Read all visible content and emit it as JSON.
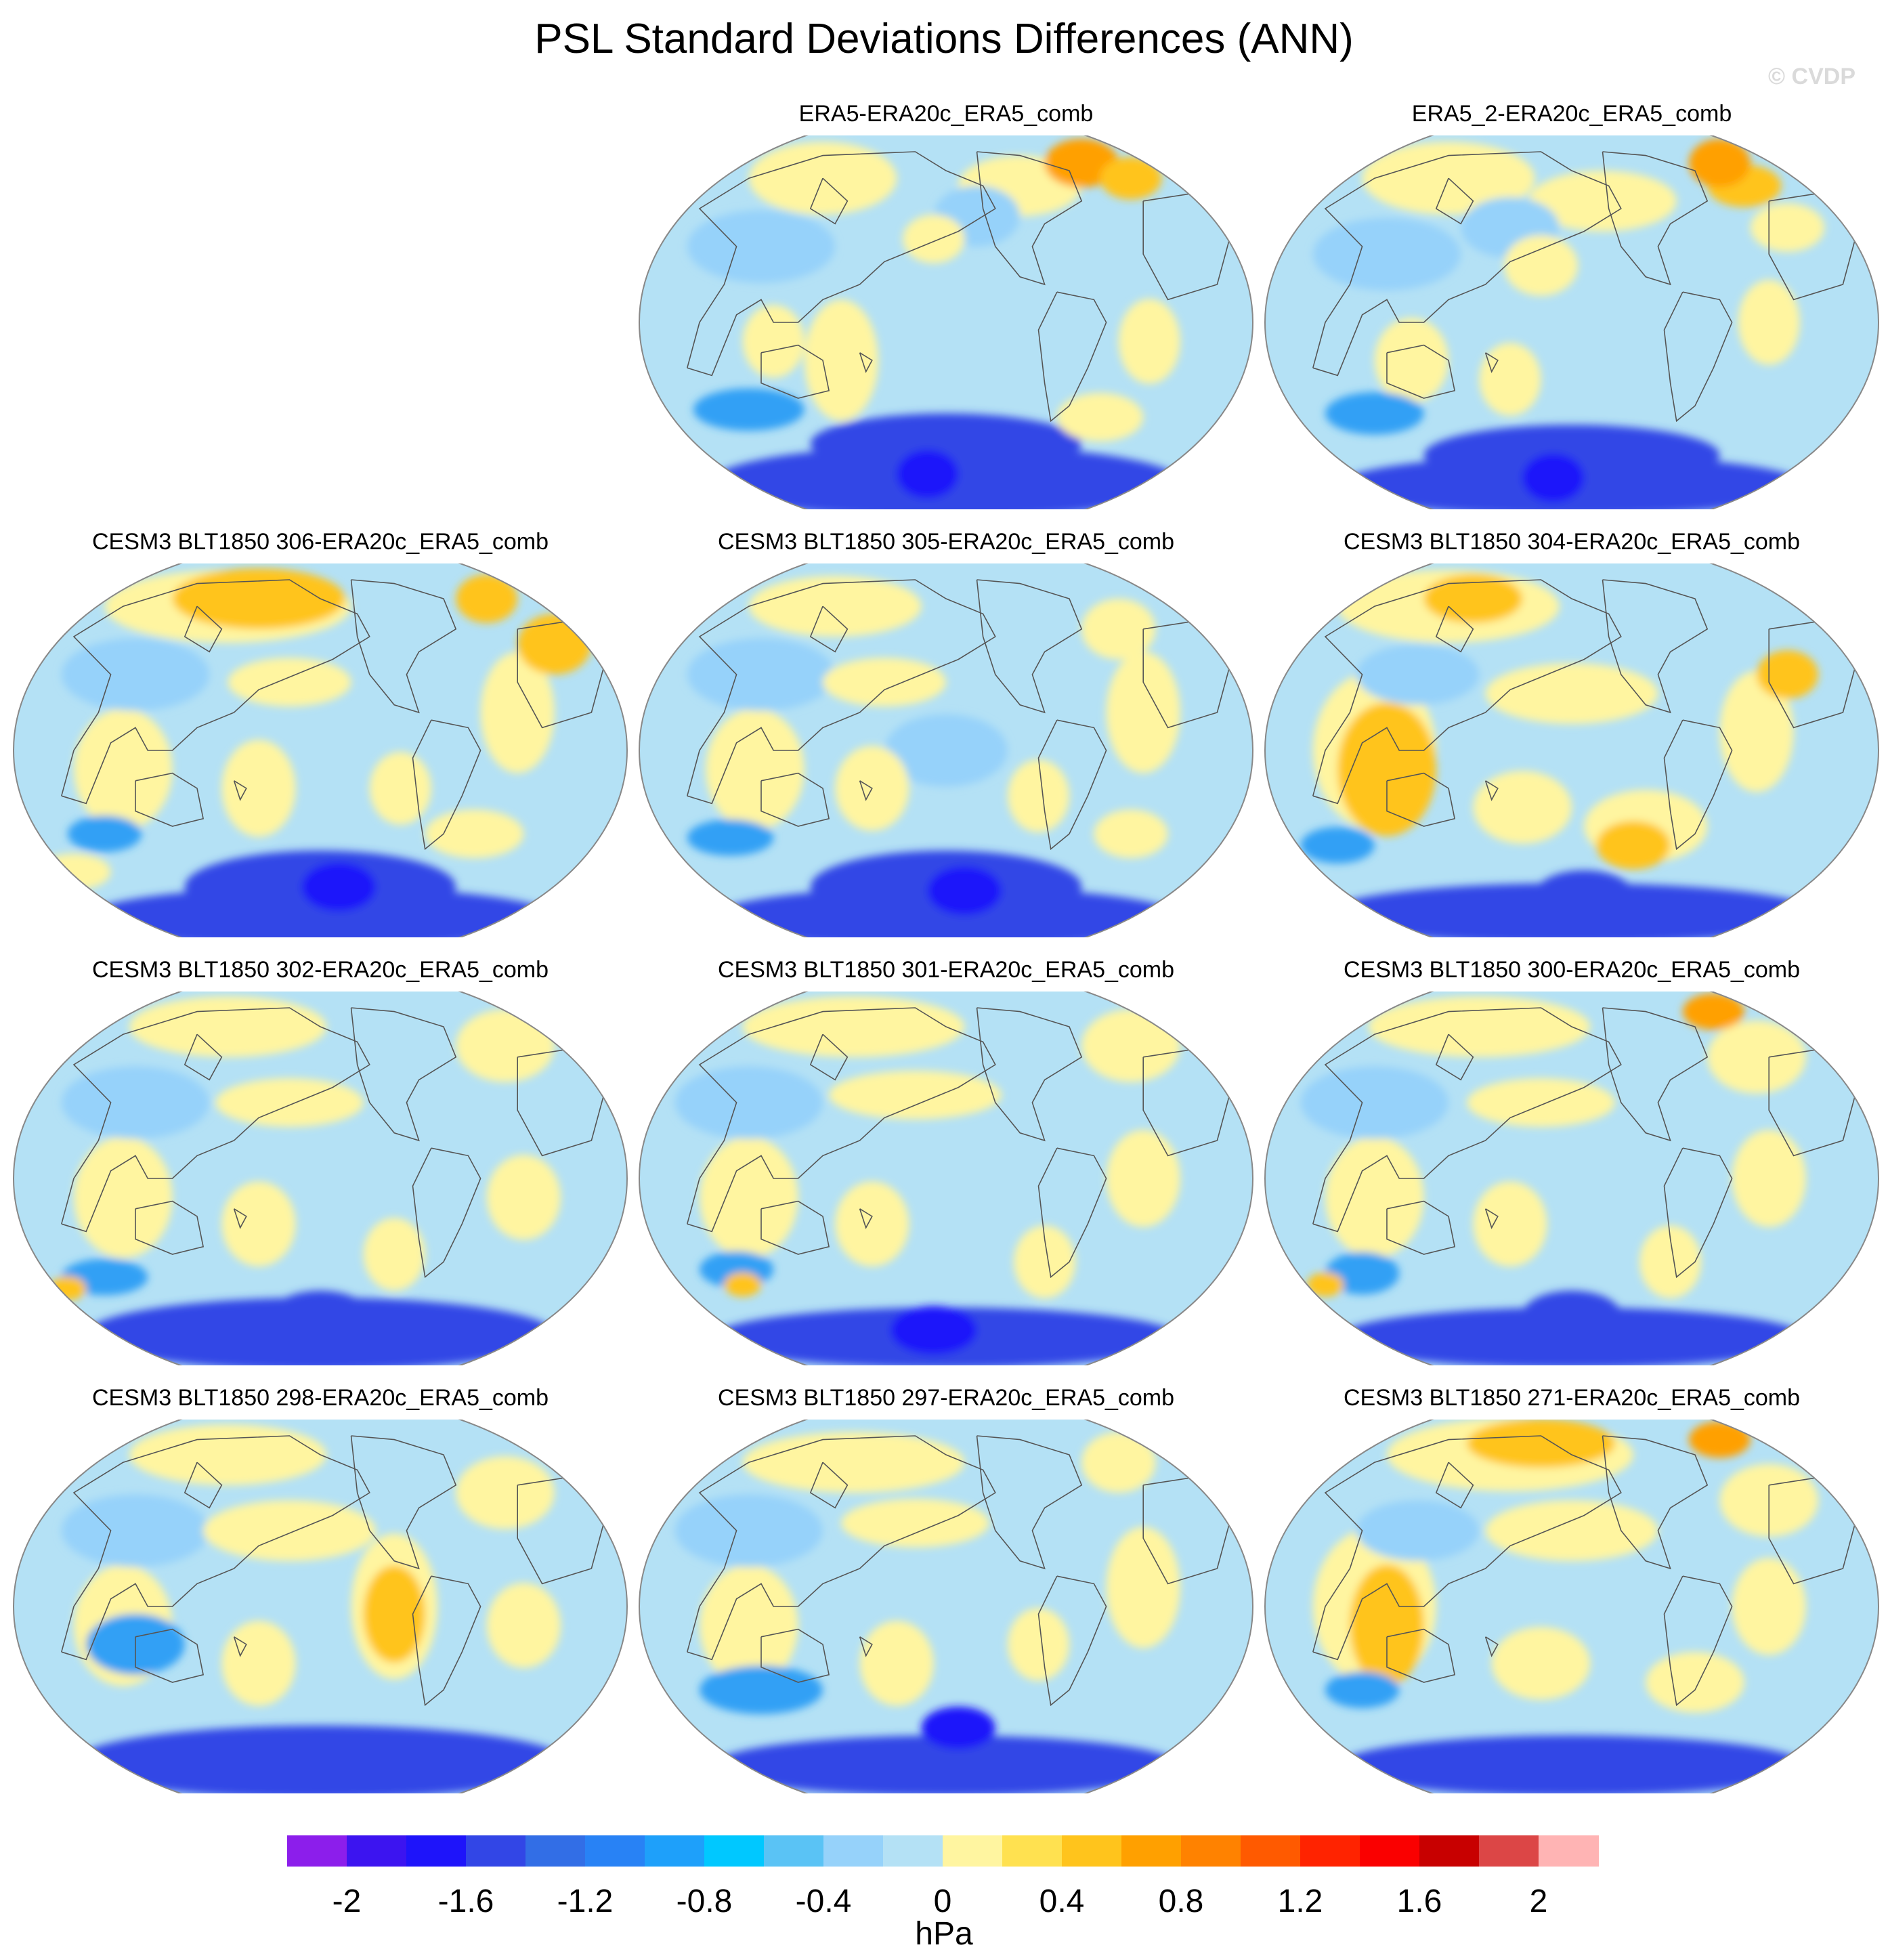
{
  "title": "PSL Standard Deviations Differences (ANN)",
  "watermark": "© CVDP",
  "panels": [
    {
      "label": "ERA5-ERA20c_ERA5_comb",
      "col": 1,
      "row": 0,
      "blobs": [
        [
          0.72,
          0.08,
          0.06,
          0.04,
          "#ffa000"
        ],
        [
          0.8,
          0.12,
          0.05,
          0.035,
          "#ffc41c"
        ],
        [
          0.5,
          0.82,
          0.22,
          0.05,
          "#3246e6"
        ],
        [
          0.5,
          0.92,
          0.38,
          0.06,
          "#3246e6"
        ],
        [
          0.47,
          0.9,
          0.05,
          0.04,
          "#1e14fa"
        ],
        [
          0.18,
          0.73,
          0.09,
          0.035,
          "#32a0f5"
        ],
        [
          0.62,
          0.14,
          0.1,
          0.05,
          "#fff5a0"
        ],
        [
          0.3,
          0.12,
          0.12,
          0.06,
          "#fff5a0"
        ],
        [
          0.22,
          0.55,
          0.05,
          0.06,
          "#fff5a0"
        ],
        [
          0.33,
          0.6,
          0.06,
          0.1,
          "#fff5a0"
        ],
        [
          0.83,
          0.55,
          0.05,
          0.07,
          "#fff5a0"
        ],
        [
          0.48,
          0.28,
          0.05,
          0.04,
          "#fff5a0"
        ],
        [
          0.75,
          0.75,
          0.07,
          0.04,
          "#fff5a0"
        ],
        [
          0.2,
          0.3,
          0.12,
          0.06,
          "#96d2fa"
        ],
        [
          0.55,
          0.22,
          0.07,
          0.05,
          "#96d2fa"
        ]
      ]
    },
    {
      "label": "ERA5_2-ERA20c_ERA5_comb",
      "col": 2,
      "row": 0,
      "blobs": [
        [
          0.74,
          0.08,
          0.05,
          0.04,
          "#ffa000"
        ],
        [
          0.78,
          0.14,
          0.06,
          0.035,
          "#ffc41c"
        ],
        [
          0.5,
          0.85,
          0.24,
          0.05,
          "#3246e6"
        ],
        [
          0.5,
          0.93,
          0.38,
          0.05,
          "#3246e6"
        ],
        [
          0.47,
          0.91,
          0.05,
          0.04,
          "#1e14fa"
        ],
        [
          0.18,
          0.74,
          0.08,
          0.035,
          "#32a0f5"
        ],
        [
          0.55,
          0.18,
          0.12,
          0.05,
          "#fff5a0"
        ],
        [
          0.3,
          0.12,
          0.14,
          0.06,
          "#fff5a0"
        ],
        [
          0.24,
          0.6,
          0.06,
          0.07,
          "#fff5a0"
        ],
        [
          0.4,
          0.65,
          0.05,
          0.06,
          "#fff5a0"
        ],
        [
          0.82,
          0.5,
          0.05,
          0.07,
          "#fff5a0"
        ],
        [
          0.45,
          0.35,
          0.06,
          0.05,
          "#fff5a0"
        ],
        [
          0.85,
          0.25,
          0.06,
          0.04,
          "#fff5a0"
        ],
        [
          0.2,
          0.32,
          0.12,
          0.06,
          "#96d2fa"
        ],
        [
          0.4,
          0.25,
          0.08,
          0.05,
          "#96d2fa"
        ]
      ]
    },
    {
      "label": "CESM3 BLT1850 306-ERA20c_ERA5_comb",
      "col": 0,
      "row": 1,
      "blobs": [
        [
          0.5,
          0.86,
          0.22,
          0.06,
          "#3246e6"
        ],
        [
          0.5,
          0.94,
          0.38,
          0.05,
          "#3246e6"
        ],
        [
          0.53,
          0.86,
          0.06,
          0.04,
          "#1e14fa"
        ],
        [
          0.4,
          0.1,
          0.14,
          0.05,
          "#ffc41c"
        ],
        [
          0.77,
          0.1,
          0.05,
          0.04,
          "#ffc41c"
        ],
        [
          0.88,
          0.22,
          0.06,
          0.05,
          "#ffc41c"
        ],
        [
          0.15,
          0.72,
          0.06,
          0.03,
          "#32a0f5"
        ],
        [
          0.35,
          0.12,
          0.2,
          0.06,
          "#fff5a0"
        ],
        [
          0.45,
          0.32,
          0.1,
          0.04,
          "#fff5a0"
        ],
        [
          0.18,
          0.55,
          0.08,
          0.1,
          "#fff5a0"
        ],
        [
          0.4,
          0.6,
          0.06,
          0.08,
          "#fff5a0"
        ],
        [
          0.63,
          0.6,
          0.05,
          0.06,
          "#fff5a0"
        ],
        [
          0.82,
          0.4,
          0.06,
          0.1,
          "#fff5a0"
        ],
        [
          0.75,
          0.72,
          0.08,
          0.04,
          "#fff5a0"
        ],
        [
          0.1,
          0.82,
          0.06,
          0.03,
          "#fff5a0"
        ],
        [
          0.2,
          0.3,
          0.12,
          0.06,
          "#96d2fa"
        ]
      ]
    },
    {
      "label": "CESM3 BLT1850 305-ERA20c_ERA5_comb",
      "col": 1,
      "row": 1,
      "blobs": [
        [
          0.5,
          0.86,
          0.22,
          0.06,
          "#3246e6"
        ],
        [
          0.5,
          0.94,
          0.38,
          0.05,
          "#3246e6"
        ],
        [
          0.53,
          0.87,
          0.06,
          0.04,
          "#1e14fa"
        ],
        [
          0.15,
          0.73,
          0.07,
          0.03,
          "#32a0f5"
        ],
        [
          0.32,
          0.12,
          0.14,
          0.05,
          "#fff5a0"
        ],
        [
          0.78,
          0.18,
          0.06,
          0.05,
          "#fff5a0"
        ],
        [
          0.4,
          0.32,
          0.1,
          0.04,
          "#fff5a0"
        ],
        [
          0.19,
          0.55,
          0.08,
          0.1,
          "#fff5a0"
        ],
        [
          0.38,
          0.6,
          0.06,
          0.07,
          "#fff5a0"
        ],
        [
          0.65,
          0.62,
          0.05,
          0.06,
          "#fff5a0"
        ],
        [
          0.82,
          0.4,
          0.06,
          0.1,
          "#fff5a0"
        ],
        [
          0.8,
          0.72,
          0.06,
          0.04,
          "#fff5a0"
        ],
        [
          0.2,
          0.3,
          0.12,
          0.06,
          "#96d2fa"
        ],
        [
          0.5,
          0.5,
          0.1,
          0.06,
          "#96d2fa"
        ]
      ]
    },
    {
      "label": "CESM3 BLT1850 304-ERA20c_ERA5_comb",
      "col": 2,
      "row": 1,
      "blobs": [
        [
          0.5,
          0.93,
          0.4,
          0.05,
          "#3246e6"
        ],
        [
          0.52,
          0.88,
          0.08,
          0.04,
          "#3246e6"
        ],
        [
          0.2,
          0.55,
          0.08,
          0.11,
          "#ffc41c"
        ],
        [
          0.34,
          0.1,
          0.08,
          0.04,
          "#ffc41c"
        ],
        [
          0.6,
          0.75,
          0.06,
          0.04,
          "#ffc41c"
        ],
        [
          0.85,
          0.3,
          0.05,
          0.04,
          "#ffc41c"
        ],
        [
          0.3,
          0.12,
          0.18,
          0.06,
          "#fff5a0"
        ],
        [
          0.5,
          0.35,
          0.14,
          0.05,
          "#fff5a0"
        ],
        [
          0.18,
          0.5,
          0.1,
          0.13,
          "#fff5a0"
        ],
        [
          0.42,
          0.65,
          0.08,
          0.06,
          "#fff5a0"
        ],
        [
          0.8,
          0.45,
          0.06,
          0.1,
          "#fff5a0"
        ],
        [
          0.62,
          0.7,
          0.1,
          0.06,
          "#fff5a0"
        ],
        [
          0.12,
          0.75,
          0.06,
          0.03,
          "#32a0f5"
        ],
        [
          0.25,
          0.3,
          0.1,
          0.05,
          "#96d2fa"
        ]
      ]
    },
    {
      "label": "CESM3 BLT1850 302-ERA20c_ERA5_comb",
      "col": 0,
      "row": 2,
      "blobs": [
        [
          0.5,
          0.91,
          0.38,
          0.06,
          "#3246e6"
        ],
        [
          0.5,
          0.86,
          0.08,
          0.04,
          "#3246e6"
        ],
        [
          0.15,
          0.76,
          0.07,
          0.03,
          "#32a0f5"
        ],
        [
          0.35,
          0.1,
          0.16,
          0.05,
          "#fff5a0"
        ],
        [
          0.8,
          0.15,
          0.08,
          0.06,
          "#fff5a0"
        ],
        [
          0.45,
          0.3,
          0.12,
          0.04,
          "#fff5a0"
        ],
        [
          0.18,
          0.55,
          0.08,
          0.1,
          "#fff5a0"
        ],
        [
          0.4,
          0.62,
          0.06,
          0.07,
          "#fff5a0"
        ],
        [
          0.62,
          0.7,
          0.05,
          0.06,
          "#fff5a0"
        ],
        [
          0.83,
          0.55,
          0.06,
          0.07,
          "#fff5a0"
        ],
        [
          0.2,
          0.3,
          0.12,
          0.06,
          "#96d2fa"
        ],
        [
          0.09,
          0.79,
          0.03,
          0.02,
          "#ffc41c"
        ]
      ]
    },
    {
      "label": "CESM3 BLT1850 301-ERA20c_ERA5_comb",
      "col": 1,
      "row": 2,
      "blobs": [
        [
          0.5,
          0.92,
          0.38,
          0.05,
          "#3246e6"
        ],
        [
          0.48,
          0.9,
          0.07,
          0.04,
          "#1e14fa"
        ],
        [
          0.16,
          0.74,
          0.06,
          0.03,
          "#32a0f5"
        ],
        [
          0.35,
          0.1,
          0.18,
          0.05,
          "#fff5a0"
        ],
        [
          0.8,
          0.15,
          0.08,
          0.06,
          "#fff5a0"
        ],
        [
          0.45,
          0.28,
          0.14,
          0.04,
          "#fff5a0"
        ],
        [
          0.18,
          0.55,
          0.08,
          0.1,
          "#fff5a0"
        ],
        [
          0.38,
          0.62,
          0.06,
          0.07,
          "#fff5a0"
        ],
        [
          0.66,
          0.72,
          0.05,
          0.06,
          "#fff5a0"
        ],
        [
          0.82,
          0.5,
          0.06,
          0.08,
          "#fff5a0"
        ],
        [
          0.18,
          0.3,
          0.12,
          0.06,
          "#96d2fa"
        ],
        [
          0.17,
          0.78,
          0.03,
          0.02,
          "#ffc41c"
        ]
      ]
    },
    {
      "label": "CESM3 BLT1850 300-ERA20c_ERA5_comb",
      "col": 2,
      "row": 2,
      "blobs": [
        [
          0.5,
          0.92,
          0.38,
          0.05,
          "#3246e6"
        ],
        [
          0.5,
          0.86,
          0.08,
          0.04,
          "#3246e6"
        ],
        [
          0.73,
          0.06,
          0.05,
          0.03,
          "#ffa000"
        ],
        [
          0.16,
          0.75,
          0.06,
          0.035,
          "#32a0f5"
        ],
        [
          0.35,
          0.1,
          0.18,
          0.05,
          "#fff5a0"
        ],
        [
          0.8,
          0.18,
          0.08,
          0.06,
          "#fff5a0"
        ],
        [
          0.45,
          0.3,
          0.12,
          0.04,
          "#fff5a0"
        ],
        [
          0.18,
          0.55,
          0.08,
          0.1,
          "#fff5a0"
        ],
        [
          0.4,
          0.62,
          0.06,
          0.07,
          "#fff5a0"
        ],
        [
          0.66,
          0.72,
          0.05,
          0.06,
          "#fff5a0"
        ],
        [
          0.82,
          0.5,
          0.06,
          0.08,
          "#fff5a0"
        ],
        [
          0.18,
          0.3,
          0.12,
          0.06,
          "#96d2fa"
        ],
        [
          0.1,
          0.78,
          0.03,
          0.02,
          "#ffc41c"
        ]
      ]
    },
    {
      "label": "CESM3 BLT1850 298-ERA20c_ERA5_comb",
      "col": 0,
      "row": 3,
      "blobs": [
        [
          0.5,
          0.91,
          0.4,
          0.06,
          "#3246e6"
        ],
        [
          0.62,
          0.52,
          0.05,
          0.08,
          "#ffc41c"
        ],
        [
          0.2,
          0.6,
          0.08,
          0.05,
          "#32a0f5"
        ],
        [
          0.35,
          0.1,
          0.16,
          0.05,
          "#fff5a0"
        ],
        [
          0.8,
          0.2,
          0.08,
          0.06,
          "#fff5a0"
        ],
        [
          0.45,
          0.3,
          0.14,
          0.05,
          "#fff5a0"
        ],
        [
          0.18,
          0.55,
          0.08,
          0.1,
          "#fff5a0"
        ],
        [
          0.62,
          0.5,
          0.07,
          0.12,
          "#fff5a0"
        ],
        [
          0.4,
          0.65,
          0.06,
          0.07,
          "#fff5a0"
        ],
        [
          0.83,
          0.55,
          0.06,
          0.07,
          "#fff5a0"
        ],
        [
          0.2,
          0.3,
          0.12,
          0.06,
          "#96d2fa"
        ]
      ]
    },
    {
      "label": "CESM3 BLT1850 297-ERA20c_ERA5_comb",
      "col": 1,
      "row": 3,
      "blobs": [
        [
          0.5,
          0.92,
          0.38,
          0.05,
          "#3246e6"
        ],
        [
          0.52,
          0.82,
          0.06,
          0.035,
          "#1e14fa"
        ],
        [
          0.2,
          0.72,
          0.1,
          0.04,
          "#32a0f5"
        ],
        [
          0.35,
          0.12,
          0.18,
          0.05,
          "#fff5a0"
        ],
        [
          0.78,
          0.12,
          0.06,
          0.05,
          "#fff5a0"
        ],
        [
          0.45,
          0.28,
          0.12,
          0.04,
          "#fff5a0"
        ],
        [
          0.18,
          0.55,
          0.08,
          0.1,
          "#fff5a0"
        ],
        [
          0.42,
          0.65,
          0.06,
          0.07,
          "#fff5a0"
        ],
        [
          0.65,
          0.6,
          0.05,
          0.06,
          "#fff5a0"
        ],
        [
          0.82,
          0.45,
          0.06,
          0.1,
          "#fff5a0"
        ],
        [
          0.18,
          0.3,
          0.12,
          0.06,
          "#96d2fa"
        ]
      ]
    },
    {
      "label": "CESM3 BLT1850 271-ERA20c_ERA5_comb",
      "col": 2,
      "row": 3,
      "blobs": [
        [
          0.5,
          0.92,
          0.38,
          0.05,
          "#3246e6"
        ],
        [
          0.74,
          0.06,
          0.05,
          0.03,
          "#ffa000"
        ],
        [
          0.45,
          0.07,
          0.12,
          0.04,
          "#ffc41c"
        ],
        [
          0.2,
          0.55,
          0.06,
          0.1,
          "#ffc41c"
        ],
        [
          0.16,
          0.72,
          0.06,
          0.03,
          "#32a0f5"
        ],
        [
          0.4,
          0.1,
          0.2,
          0.06,
          "#fff5a0"
        ],
        [
          0.82,
          0.22,
          0.08,
          0.06,
          "#fff5a0"
        ],
        [
          0.5,
          0.3,
          0.14,
          0.05,
          "#fff5a0"
        ],
        [
          0.18,
          0.5,
          0.1,
          0.13,
          "#fff5a0"
        ],
        [
          0.45,
          0.65,
          0.08,
          0.06,
          "#fff5a0"
        ],
        [
          0.82,
          0.5,
          0.06,
          0.08,
          "#fff5a0"
        ],
        [
          0.7,
          0.7,
          0.08,
          0.05,
          "#fff5a0"
        ],
        [
          0.25,
          0.3,
          0.1,
          0.05,
          "#96d2fa"
        ]
      ]
    }
  ],
  "colorbar": {
    "colors": [
      "#8c1eeb",
      "#3c14f0",
      "#1e14fa",
      "#3246e6",
      "#326ee6",
      "#2882f5",
      "#1ea0fa",
      "#00c8ff",
      "#5ac3f5",
      "#96d2fa",
      "#b4e1f5",
      "#fff5a0",
      "#ffe150",
      "#ffc41c",
      "#ffa000",
      "#ff8200",
      "#ff5a00",
      "#ff2300",
      "#fa0000",
      "#c80000",
      "#dc4646",
      "#ffb4b4"
    ],
    "levels": [
      -2.2,
      -2.0,
      -1.8,
      -1.6,
      -1.4,
      -1.2,
      -1.0,
      -0.8,
      -0.6,
      -0.4,
      -0.2,
      0,
      0.2,
      0.4,
      0.6,
      0.8,
      1.0,
      1.2,
      1.4,
      1.6,
      1.8,
      2.0,
      2.2
    ],
    "labels": [
      "-2",
      "-1.6",
      "-1.2",
      "-0.8",
      "-0.4",
      "0",
      "0.4",
      "0.8",
      "1.2",
      "1.6",
      "2"
    ],
    "label_levels": [
      -2,
      -1.6,
      -1.2,
      -0.8,
      -0.4,
      0,
      0.4,
      0.8,
      1.2,
      1.6,
      2
    ],
    "units": "hPa"
  },
  "ocean_color": "#b4e1f5",
  "coast_color": "#555555"
}
